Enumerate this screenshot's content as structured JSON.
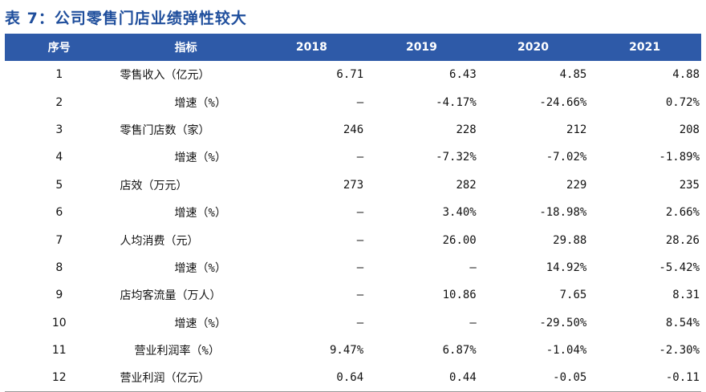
{
  "title": "表 7：公司零售门店业绩弹性较大",
  "table": {
    "headers": [
      "序号",
      "指标",
      "2018",
      "2019",
      "2020",
      "2021"
    ],
    "rows": [
      {
        "no": "1",
        "metric": "零售收入（亿元）",
        "v2018": "6.71",
        "v2019": "6.43",
        "v2020": "4.85",
        "v2021": "4.88",
        "style": "main"
      },
      {
        "no": "2",
        "metric": "增速（%）",
        "v2018": "–",
        "v2019": "-4.17%",
        "v2020": "-24.66%",
        "v2021": "0.72%",
        "style": "sub"
      },
      {
        "no": "3",
        "metric": "零售门店数（家）",
        "v2018": "246",
        "v2019": "228",
        "v2020": "212",
        "v2021": "208",
        "style": "main"
      },
      {
        "no": "4",
        "metric": "增速（%）",
        "v2018": "–",
        "v2019": "-7.32%",
        "v2020": "-7.02%",
        "v2021": "-1.89%",
        "style": "sub"
      },
      {
        "no": "5",
        "metric": "店效（万元）",
        "v2018": "273",
        "v2019": "282",
        "v2020": "229",
        "v2021": "235",
        "style": "main"
      },
      {
        "no": "6",
        "metric": "增速（%）",
        "v2018": "–",
        "v2019": "3.40%",
        "v2020": "-18.98%",
        "v2021": "2.66%",
        "style": "sub"
      },
      {
        "no": "7",
        "metric": "人均消费（元）",
        "v2018": "–",
        "v2019": "26.00",
        "v2020": "29.88",
        "v2021": "28.26",
        "style": "main"
      },
      {
        "no": "8",
        "metric": "增速（%）",
        "v2018": "–",
        "v2019": "–",
        "v2020": "14.92%",
        "v2021": "-5.42%",
        "style": "sub"
      },
      {
        "no": "9",
        "metric": "店均客流量（万人）",
        "v2018": "–",
        "v2019": "10.86",
        "v2020": "7.65",
        "v2021": "8.31",
        "style": "main"
      },
      {
        "no": "10",
        "metric": "增速（%）",
        "v2018": "–",
        "v2019": "–",
        "v2020": "-29.50%",
        "v2021": "8.54%",
        "style": "sub"
      },
      {
        "no": "11",
        "metric": "营业利润率（%）",
        "v2018": "9.47%",
        "v2019": "6.87%",
        "v2020": "-1.04%",
        "v2021": "-2.30%",
        "style": "mid"
      },
      {
        "no": "12",
        "metric": "营业利润（亿元）",
        "v2018": "0.64",
        "v2019": "0.44",
        "v2020": "-0.05",
        "v2021": "-0.11",
        "style": "main"
      }
    ]
  }
}
